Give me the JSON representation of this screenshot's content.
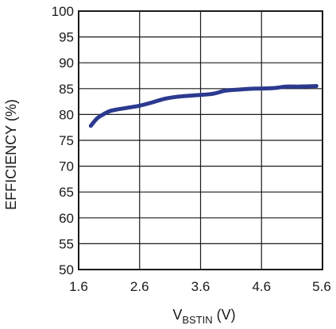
{
  "chart_data": {
    "type": "line",
    "title": "",
    "xlabel_main": "V",
    "xlabel_sub": "BSTIN",
    "xlabel_unit": " (V)",
    "ylabel": "EFFICIENCY (%)",
    "xlim": [
      1.6,
      5.6
    ],
    "ylim": [
      50,
      100
    ],
    "x_ticks": [
      "1.6",
      "2.6",
      "3.6",
      "4.6",
      "5.6"
    ],
    "y_ticks": [
      "100",
      "95",
      "90",
      "85",
      "80",
      "75",
      "70",
      "65",
      "60",
      "55",
      "50"
    ],
    "grid": true,
    "legend": "none",
    "series": [
      {
        "color": "#2b3a8f",
        "x": [
          1.8,
          1.9,
          2.0,
          2.1,
          2.2,
          2.4,
          2.6,
          2.8,
          3.0,
          3.2,
          3.5,
          3.8,
          4.0,
          4.2,
          4.5,
          4.8,
          5.0,
          5.2,
          5.5
        ],
        "y": [
          77.8,
          79.2,
          80.0,
          80.6,
          80.9,
          81.3,
          81.7,
          82.3,
          83.0,
          83.4,
          83.7,
          84.0,
          84.6,
          84.8,
          85.0,
          85.1,
          85.4,
          85.4,
          85.5
        ]
      }
    ]
  }
}
